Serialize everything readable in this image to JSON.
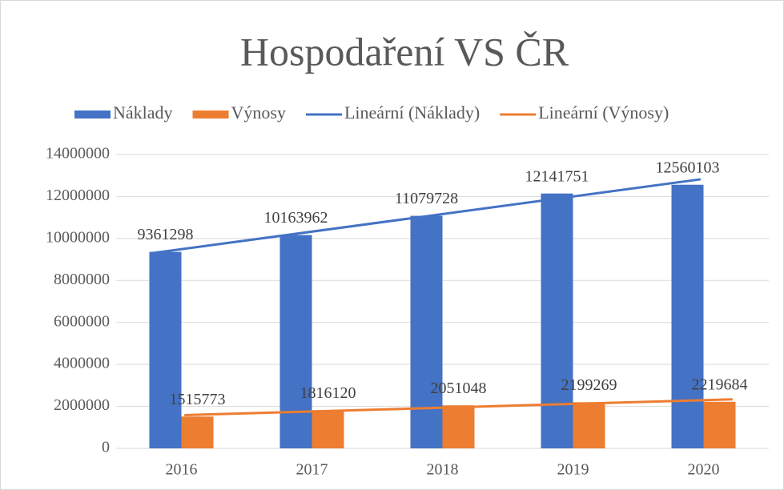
{
  "chart_data": {
    "type": "bar",
    "title": "Hospodaření VS ČR",
    "categories": [
      "2016",
      "2017",
      "2018",
      "2019",
      "2020"
    ],
    "series": [
      {
        "name": "Náklady",
        "color": "#4472c4",
        "values": [
          9361298,
          10163962,
          11079728,
          12141751,
          12560103
        ],
        "trendline": {
          "name": "Lineární (Náklady)",
          "color": "#4472c4"
        }
      },
      {
        "name": "Výnosy",
        "color": "#ed7d31",
        "values": [
          1515773,
          1816120,
          2051048,
          2199269,
          2219684
        ],
        "trendline": {
          "name": "Lineární (Výnosy)",
          "color": "#ed7d31"
        }
      }
    ],
    "ylim": [
      0,
      14000000
    ],
    "yticks": [
      0,
      2000000,
      4000000,
      6000000,
      8000000,
      10000000,
      12000000,
      14000000
    ],
    "grid": true,
    "legend": "top"
  }
}
